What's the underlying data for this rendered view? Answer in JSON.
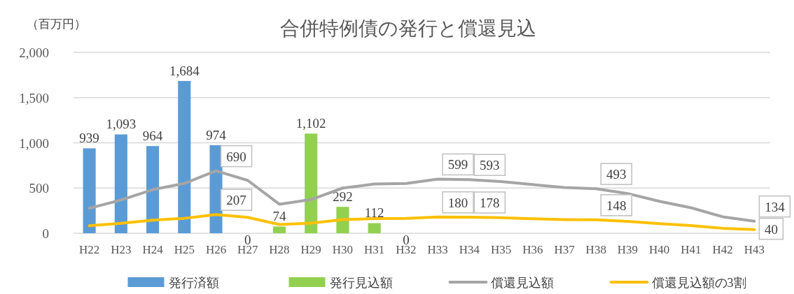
{
  "chart_data": {
    "type": "bar",
    "title": "合併特例債の発行と償還見込",
    "ylabel": "（百万円）",
    "categories": [
      "H22",
      "H23",
      "H24",
      "H25",
      "H26",
      "H27",
      "H28",
      "H29",
      "H30",
      "H31",
      "H32",
      "H33",
      "H34",
      "H35",
      "H36",
      "H37",
      "H38",
      "H39",
      "H40",
      "H41",
      "H42",
      "H43"
    ],
    "ylim": [
      0,
      2000
    ],
    "yticks": [
      0,
      {
        "value": 500,
        "label": "500"
      },
      {
        "value": 1000,
        "label": "1,000"
      },
      {
        "value": 1500,
        "label": "1,500"
      },
      {
        "value": 2000,
        "label": "2,000"
      }
    ],
    "grid": "y",
    "legend": "bottom",
    "series": [
      {
        "name": "発行済額",
        "color": "#5b9bd5",
        "values": [
          939,
          1093,
          964,
          1684,
          974,
          null,
          null,
          null,
          null,
          null,
          null,
          null,
          null,
          null,
          null,
          null,
          null,
          null,
          null,
          null,
          null,
          null
        ],
        "value_labels": [
          "939",
          "1,093",
          "964",
          "1,684",
          "974",
          null,
          null,
          null,
          null,
          null,
          null,
          null,
          null,
          null,
          null,
          null,
          null,
          null,
          null,
          null,
          null,
          null
        ]
      },
      {
        "name": "発行見込額",
        "color": "#92d050",
        "values": [
          null,
          null,
          null,
          null,
          null,
          0,
          74,
          1102,
          292,
          112,
          0,
          null,
          null,
          null,
          null,
          null,
          null,
          null,
          null,
          null,
          null,
          null
        ],
        "value_labels": [
          null,
          null,
          null,
          null,
          null,
          "0",
          "74",
          "1,102",
          "292",
          "112",
          "0",
          null,
          null,
          null,
          null,
          null,
          null,
          null,
          null,
          null,
          null,
          null
        ]
      },
      {
        "name": "償還見込額",
        "type": "line",
        "color": "#a5a5a5",
        "values": [
          277,
          367,
          482,
          551,
          690,
          585,
          321,
          372,
          500,
          544,
          551,
          599,
          593,
          572,
          538,
          505,
          493,
          439,
          353,
          282,
          182,
          134
        ],
        "value_labels": [
          null,
          null,
          null,
          null,
          "690",
          null,
          null,
          null,
          null,
          null,
          null,
          "599",
          "593",
          null,
          null,
          null,
          "493",
          null,
          null,
          null,
          null,
          "134"
        ]
      },
      {
        "name": "償還見込額の3割",
        "type": "line",
        "color": "#ffc000",
        "values": [
          83,
          110,
          145,
          165,
          207,
          176,
          96,
          112,
          150,
          163,
          165,
          180,
          178,
          172,
          161,
          151,
          148,
          132,
          106,
          85,
          55,
          40
        ],
        "value_labels": [
          null,
          null,
          null,
          null,
          "207",
          null,
          null,
          null,
          null,
          null,
          null,
          "180",
          "178",
          null,
          null,
          null,
          "148",
          null,
          null,
          null,
          null,
          "40"
        ]
      }
    ]
  }
}
